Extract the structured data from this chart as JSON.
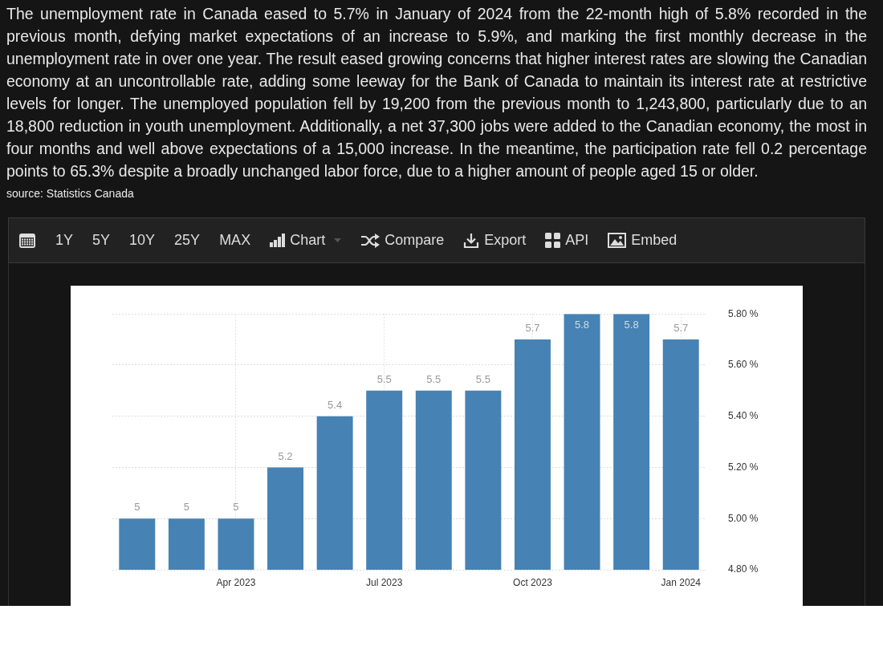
{
  "chart_data": {
    "type": "bar",
    "subtitle": "The unemployment rate in Canada eased to 5.7% in January of 2024 from the 22-month high of 5.8% recorded in the previous month, defying market expectations of an increase to 5.9%, and marking the first monthly decrease in the unemployment rate in over one year. The result eased growing concerns that higher interest rates are slowing the Canadian economy at an uncontrollable rate, adding some leeway for the Bank of Canada to maintain its interest rate at restrictive levels for longer. The unemployed population fell by 19,200 from the previous month to 1,243,800, particularly due to an 18,800 reduction in youth unemployment. Additionally, a net 37,300 jobs were added to the Canadian economy, the most in four months and well above expectations of a 15,000 increase. In the meantime, the participation rate fell 0.2 percentage points to 65.3% despite a broadly unchanged labor force, due to a higher amount of people aged 15 or older.",
    "annotations": [
      "source: Statistics Canada",
      "1Y",
      "5Y",
      "10Y",
      "25Y",
      "MAX",
      "Chart",
      "Compare",
      "Export",
      "API",
      "Embed"
    ],
    "categories": [
      null,
      null,
      "Apr 2023",
      null,
      null,
      "Jul 2023",
      null,
      null,
      "Oct 2023",
      null,
      null,
      "Jan 2024"
    ],
    "values": [
      5,
      5,
      5,
      5.2,
      5.4,
      5.5,
      5.5,
      5.5,
      5.7,
      5.8,
      5.8,
      5.7
    ],
    "color": "#4682b4",
    "ylim": [
      4.8,
      5.8
    ],
    "yticks": [
      {
        "value": 4.8,
        "label": "4.80 %"
      },
      {
        "value": 5.0,
        "label": "5.00 %"
      },
      {
        "value": 5.2,
        "label": "5.20 %"
      },
      {
        "value": 5.4,
        "label": "5.40 %"
      },
      {
        "value": 5.6,
        "label": "5.60 %"
      },
      {
        "value": 5.8,
        "label": "5.80 %"
      }
    ],
    "grid": true,
    "data_labels": true
  }
}
